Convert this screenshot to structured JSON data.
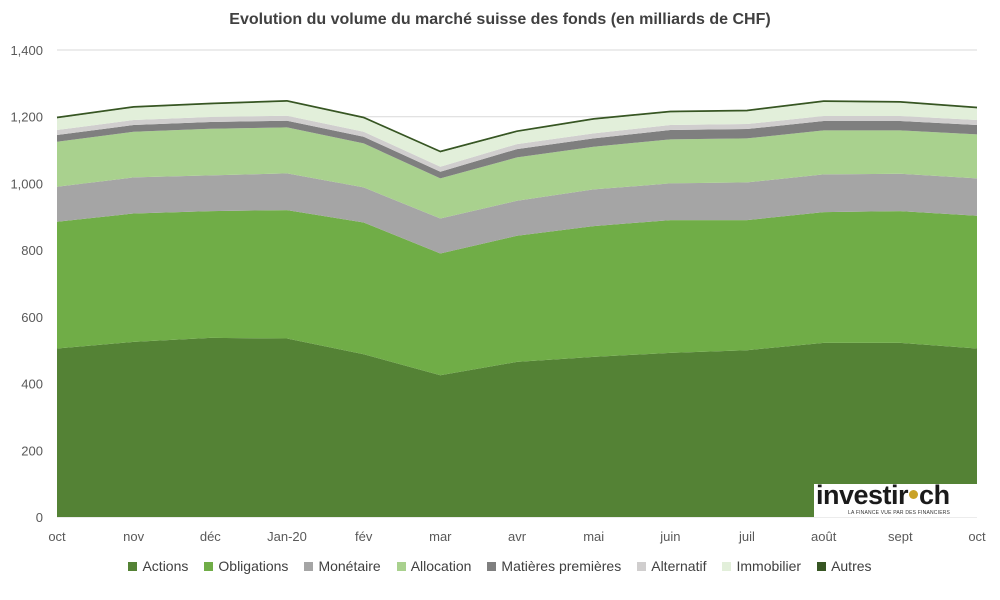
{
  "chart_data": {
    "type": "area",
    "stacked": true,
    "title": "Evolution du volume du marché suisse des fonds (en milliards de CHF)",
    "xlabel": "",
    "ylabel": "",
    "categories": [
      "oct",
      "nov",
      "déc",
      "Jan-20",
      "fév",
      "mar",
      "avr",
      "mai",
      "juin",
      "juil",
      "août",
      "sept",
      "oct"
    ],
    "ylim": [
      0,
      1400
    ],
    "yticks": [
      "0",
      "200",
      "400",
      "600",
      "800",
      "1,000",
      "1,200",
      "1,400"
    ],
    "ytick_values": [
      0,
      200,
      400,
      600,
      800,
      1000,
      1200,
      1400
    ],
    "grid": true,
    "legend_position": "bottom",
    "series": [
      {
        "name": "Actions",
        "color": "#548235",
        "values": [
          505,
          525,
          537,
          535,
          488,
          425,
          465,
          480,
          492,
          500,
          522,
          522,
          505
        ]
      },
      {
        "name": "Obligations",
        "color": "#70ad47",
        "values": [
          380,
          385,
          380,
          385,
          395,
          365,
          378,
          392,
          398,
          390,
          392,
          395,
          398
        ]
      },
      {
        "name": "Monétaire",
        "color": "#a5a5a5",
        "values": [
          105,
          108,
          107,
          110,
          105,
          105,
          105,
          110,
          110,
          113,
          113,
          112,
          112
        ]
      },
      {
        "name": "Allocation",
        "color": "#a9d18e",
        "values": [
          135,
          137,
          140,
          138,
          132,
          120,
          130,
          128,
          132,
          132,
          132,
          130,
          132
        ]
      },
      {
        "name": "Matières premières",
        "color": "#7f7f7f",
        "values": [
          20,
          20,
          20,
          20,
          20,
          20,
          25,
          25,
          28,
          28,
          28,
          28,
          28
        ]
      },
      {
        "name": "Alternatif",
        "color": "#d0cece",
        "values": [
          15,
          15,
          15,
          15,
          15,
          15,
          15,
          15,
          15,
          15,
          15,
          15,
          15
        ]
      },
      {
        "name": "Immobilier",
        "color": "#e2efda",
        "values": [
          35,
          37,
          38,
          42,
          40,
          43,
          36,
          41,
          38,
          38,
          42,
          40,
          35
        ]
      },
      {
        "name": "Autres",
        "color": "#375623",
        "values": [
          3,
          3,
          3,
          3,
          3,
          3,
          3,
          3,
          3,
          3,
          3,
          3,
          3
        ]
      }
    ]
  },
  "logo": {
    "text_left": "investir",
    "text_right": "ch",
    "tagline": "LA FINANCE VUE PAR DES FINANCIERS"
  }
}
